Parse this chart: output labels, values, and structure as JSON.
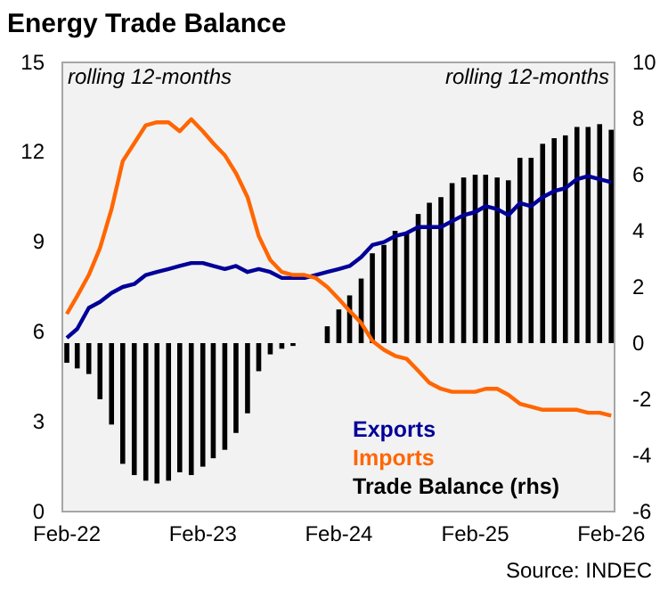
{
  "chart_data": {
    "type": "line",
    "title": "Energy Trade Balance",
    "x": [
      "2022-02",
      "2022-03",
      "2022-04",
      "2022-05",
      "2022-06",
      "2022-07",
      "2022-08",
      "2022-09",
      "2022-10",
      "2022-11",
      "2022-12",
      "2023-01",
      "2023-02",
      "2023-03",
      "2023-04",
      "2023-05",
      "2023-06",
      "2023-07",
      "2023-08",
      "2023-09",
      "2023-10",
      "2023-11",
      "2023-12",
      "2024-01",
      "2024-02",
      "2024-03",
      "2024-04",
      "2024-05",
      "2024-06",
      "2024-07",
      "2024-08",
      "2024-09",
      "2024-10",
      "2024-11",
      "2024-12",
      "2025-01",
      "2025-02",
      "2025-03",
      "2025-04",
      "2025-05",
      "2025-06",
      "2025-07",
      "2025-08",
      "2025-09",
      "2025-10",
      "2025-11",
      "2025-12",
      "2026-01",
      "2026-02"
    ],
    "series": [
      {
        "type": "bar",
        "axis": "y2",
        "name": "Trade Balance (rhs)",
        "color": "#000000",
        "values": [
          -0.7,
          -0.9,
          -1.1,
          -2.0,
          -2.9,
          -4.3,
          -4.7,
          -4.9,
          -5.0,
          -4.9,
          -4.6,
          -4.7,
          -4.4,
          -4.1,
          -3.8,
          -3.2,
          -2.5,
          -1.0,
          -0.4,
          -0.2,
          -0.1,
          0.0,
          0.0,
          0.6,
          1.2,
          1.7,
          2.3,
          3.2,
          3.5,
          4.0,
          3.9,
          4.6,
          5.0,
          5.2,
          5.7,
          5.9,
          6.0,
          6.0,
          5.9,
          5.8,
          6.6,
          6.6,
          7.1,
          7.3,
          7.4,
          7.7,
          7.7,
          7.8,
          7.6
        ]
      },
      {
        "name": "Exports",
        "color": "#000099",
        "values": [
          5.8,
          6.1,
          6.8,
          7.0,
          7.3,
          7.5,
          7.6,
          7.9,
          8.0,
          8.1,
          8.2,
          8.3,
          8.3,
          8.2,
          8.1,
          8.2,
          8.0,
          8.1,
          8.0,
          7.8,
          7.8,
          7.8,
          7.9,
          8.0,
          8.1,
          8.2,
          8.5,
          8.9,
          9.0,
          9.2,
          9.3,
          9.5,
          9.5,
          9.5,
          9.7,
          9.9,
          10.0,
          10.2,
          10.1,
          9.9,
          10.3,
          10.2,
          10.5,
          10.7,
          10.8,
          11.1,
          11.2,
          11.1,
          11.0
        ]
      },
      {
        "name": "Imports",
        "color": "#ff6600",
        "values": [
          6.6,
          7.2,
          7.9,
          8.8,
          10.1,
          11.7,
          12.3,
          12.9,
          13.0,
          13.0,
          12.7,
          13.1,
          12.7,
          12.3,
          11.9,
          11.3,
          10.5,
          9.2,
          8.4,
          8.0,
          7.9,
          7.9,
          7.8,
          7.5,
          7.1,
          6.7,
          6.3,
          5.7,
          5.4,
          5.2,
          5.1,
          4.7,
          4.3,
          4.1,
          4.0,
          4.0,
          4.0,
          4.1,
          4.1,
          3.9,
          3.6,
          3.5,
          3.4,
          3.4,
          3.4,
          3.4,
          3.3,
          3.3,
          3.2
        ]
      }
    ],
    "xlim": [
      "2022-01-20",
      "2026-02-10"
    ],
    "xticks": [
      {
        "value": "2022-02",
        "label": "Feb-22"
      },
      {
        "value": "2023-02",
        "label": "Feb-23"
      },
      {
        "value": "2024-02",
        "label": "Feb-24"
      },
      {
        "value": "2025-02",
        "label": "Feb-25"
      },
      {
        "value": "2026-02",
        "label": "Feb-26"
      }
    ],
    "ylim": [
      0,
      15
    ],
    "yticks": [
      0,
      3,
      6,
      9,
      12,
      15
    ],
    "y2lim": [
      -6,
      10
    ],
    "y2ticks": [
      -6,
      -4,
      -2,
      0,
      2,
      4,
      6,
      8,
      10
    ],
    "grid": false,
    "legend": "bottom right",
    "annotations": [
      "rolling 12-months",
      "rolling 12-months",
      "Source: INDEC"
    ]
  }
}
